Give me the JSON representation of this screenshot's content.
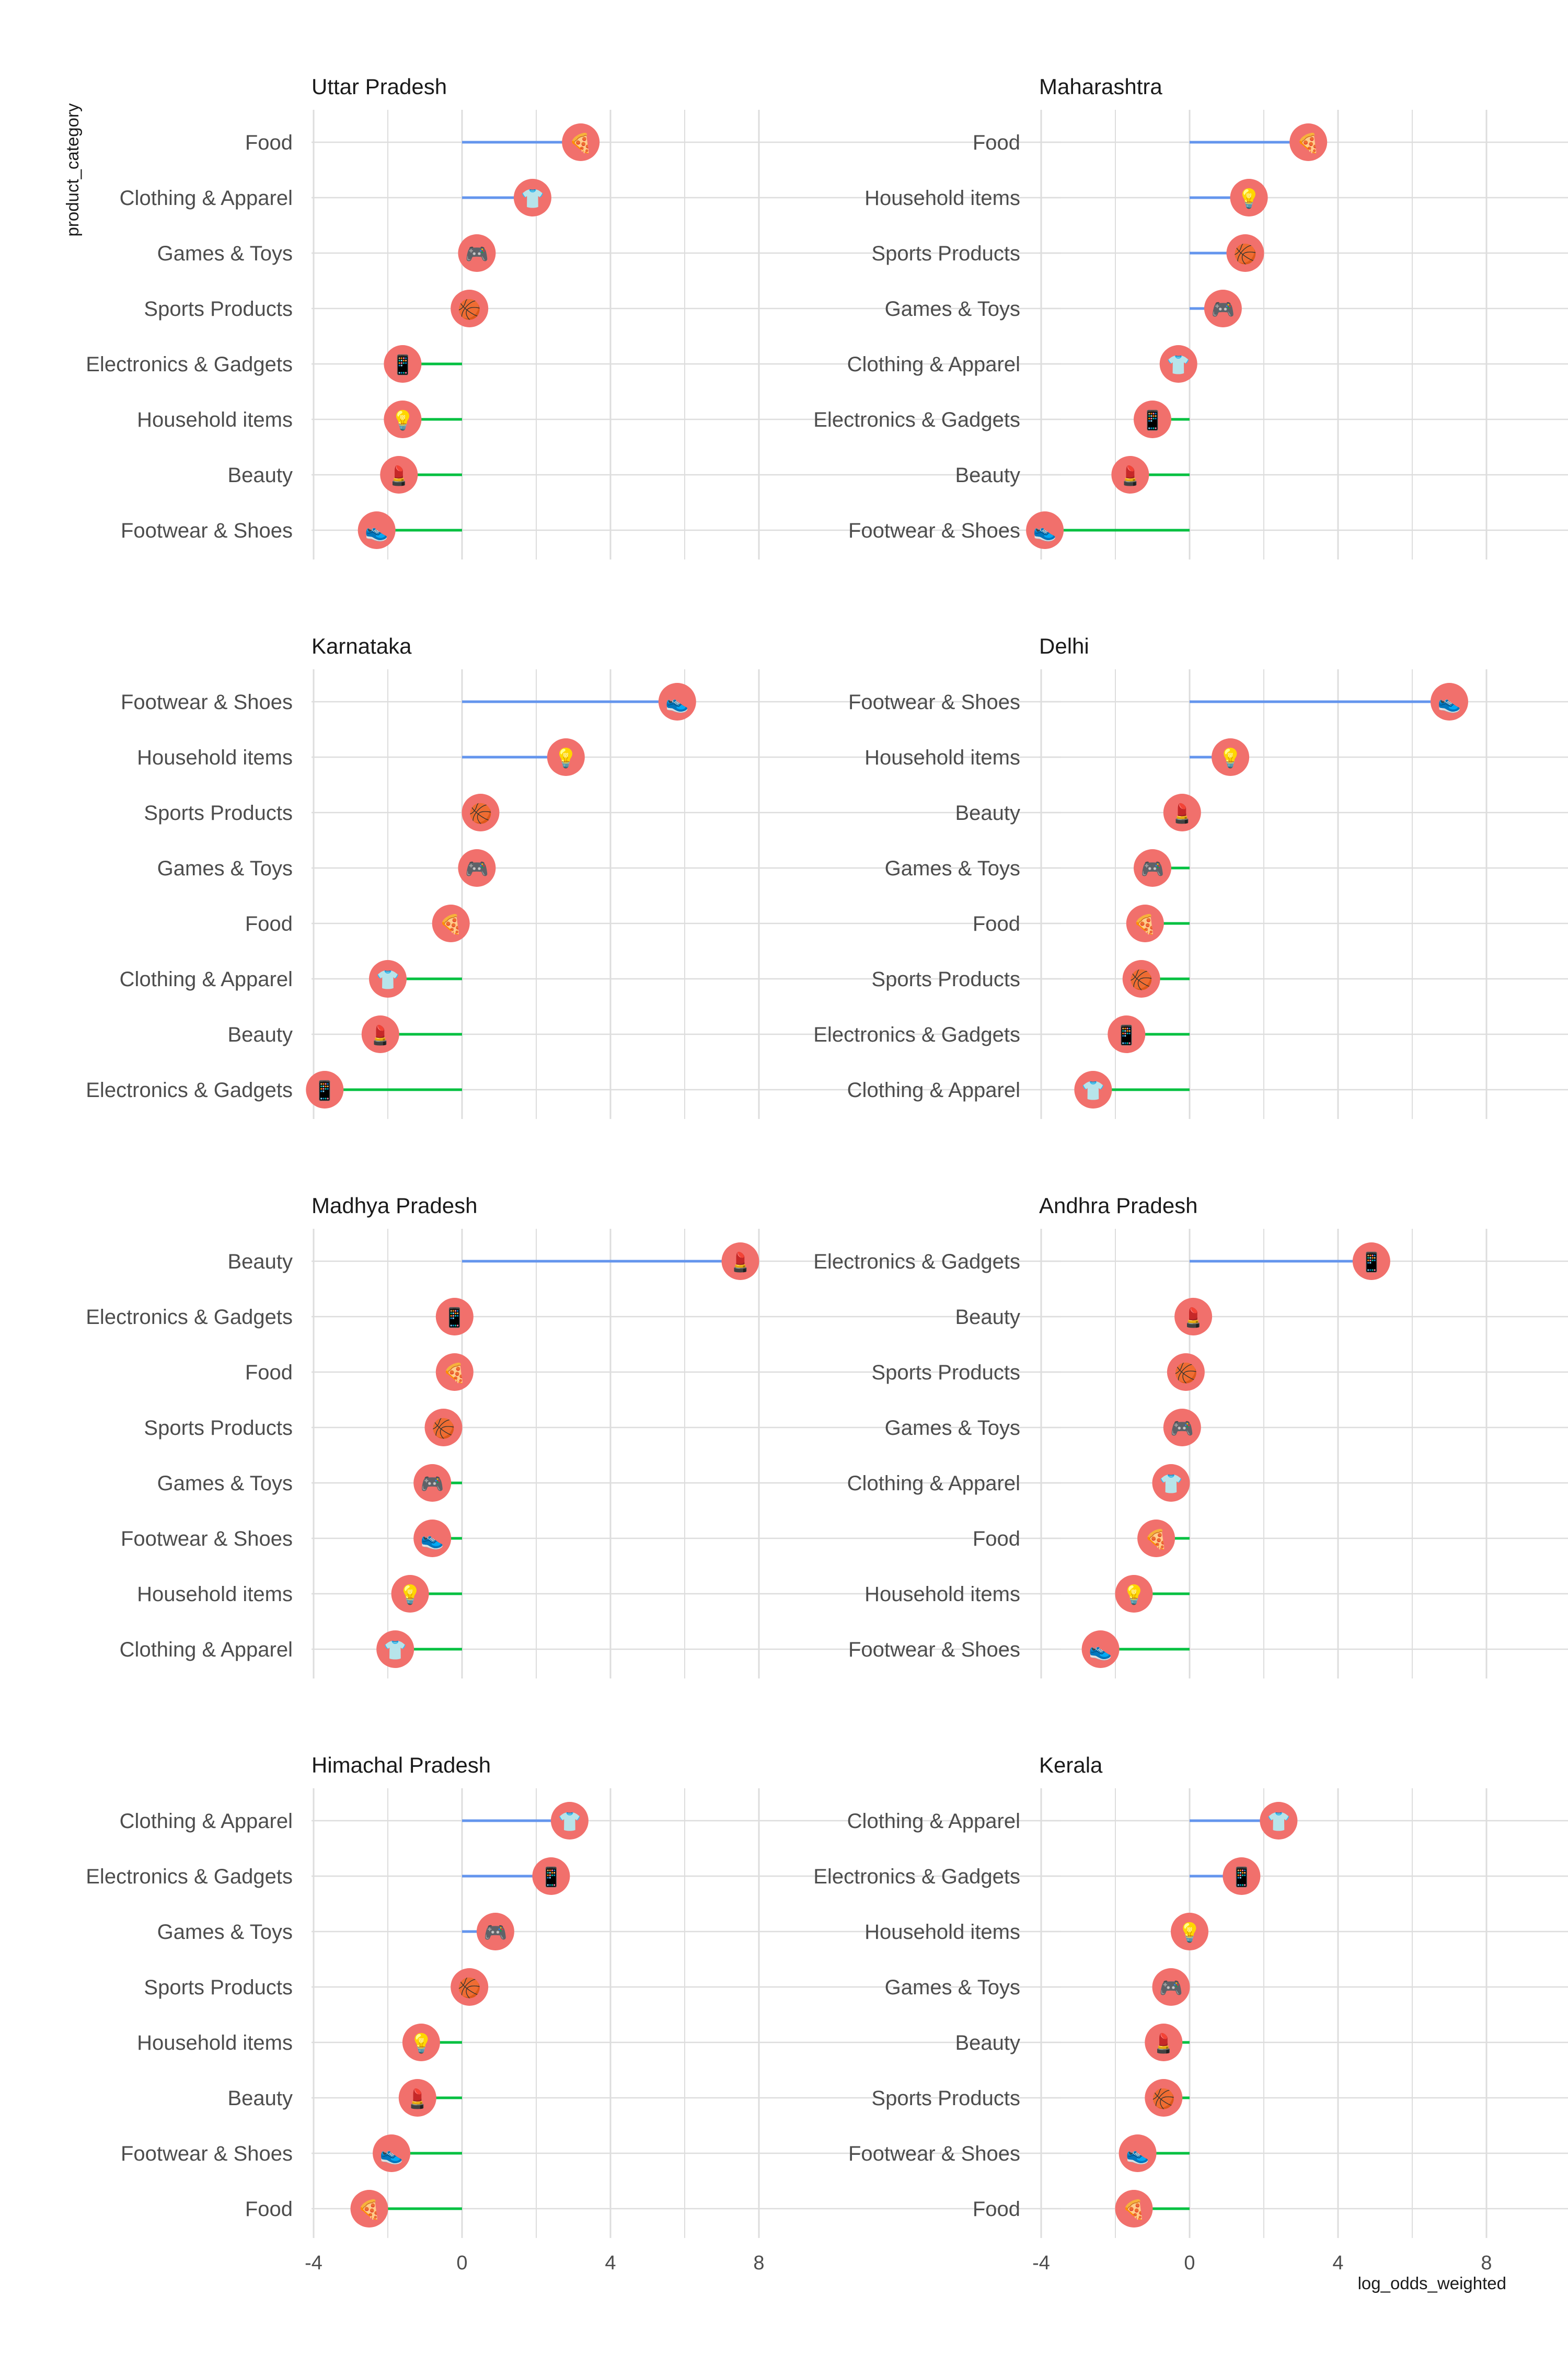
{
  "chart_data": {
    "type": "lollipop",
    "xlabel": "log_odds_weighted",
    "ylabel": "product_category",
    "xlim": [
      -4,
      8
    ],
    "x_ticks": [
      "-4",
      "0",
      "4",
      "8"
    ],
    "grid": true,
    "colors": {
      "positive_segment": "#6495ED",
      "negative_segment": "#00C040",
      "point": "#F1706C",
      "grid": "#dddddd"
    },
    "icons": {
      "Food": "🍕",
      "Clothing & Apparel": "👕",
      "Games & Toys": "🎮",
      "Sports Products": "🏀",
      "Electronics & Gadgets": "📱",
      "Household items": "💡",
      "Beauty": "💄",
      "Footwear & Shoes": "👟"
    },
    "panels": [
      {
        "title": "Uttar Pradesh",
        "categories": [
          "Food",
          "Clothing & Apparel",
          "Games & Toys",
          "Sports Products",
          "Electronics & Gadgets",
          "Household items",
          "Beauty",
          "Footwear & Shoes"
        ],
        "values": [
          3.2,
          1.9,
          0.4,
          0.2,
          -1.6,
          -1.6,
          -1.7,
          -2.3
        ]
      },
      {
        "title": "Maharashtra",
        "categories": [
          "Food",
          "Household items",
          "Sports Products",
          "Games & Toys",
          "Clothing & Apparel",
          "Electronics & Gadgets",
          "Beauty",
          "Footwear & Shoes"
        ],
        "values": [
          3.2,
          1.6,
          1.5,
          0.9,
          -0.3,
          -1.0,
          -1.6,
          -3.9
        ]
      },
      {
        "title": "Karnataka",
        "categories": [
          "Footwear & Shoes",
          "Household items",
          "Sports Products",
          "Games & Toys",
          "Food",
          "Clothing & Apparel",
          "Beauty",
          "Electronics & Gadgets"
        ],
        "values": [
          5.8,
          2.8,
          0.5,
          0.4,
          -0.3,
          -2.0,
          -2.2,
          -3.7
        ]
      },
      {
        "title": "Delhi",
        "categories": [
          "Footwear & Shoes",
          "Household items",
          "Beauty",
          "Games & Toys",
          "Food",
          "Sports Products",
          "Electronics & Gadgets",
          "Clothing & Apparel"
        ],
        "values": [
          7.0,
          1.1,
          -0.2,
          -1.0,
          -1.2,
          -1.3,
          -1.7,
          -2.6
        ]
      },
      {
        "title": "Madhya Pradesh",
        "categories": [
          "Beauty",
          "Electronics & Gadgets",
          "Food",
          "Sports Products",
          "Games & Toys",
          "Footwear & Shoes",
          "Household items",
          "Clothing & Apparel"
        ],
        "values": [
          7.5,
          -0.2,
          -0.2,
          -0.5,
          -0.8,
          -0.8,
          -1.4,
          -1.8
        ]
      },
      {
        "title": "Andhra Pradesh",
        "categories": [
          "Electronics & Gadgets",
          "Beauty",
          "Sports Products",
          "Games & Toys",
          "Clothing & Apparel",
          "Food",
          "Household items",
          "Footwear & Shoes"
        ],
        "values": [
          4.9,
          0.1,
          -0.1,
          -0.2,
          -0.5,
          -0.9,
          -1.5,
          -2.4
        ]
      },
      {
        "title": "Himachal Pradesh",
        "categories": [
          "Clothing & Apparel",
          "Electronics & Gadgets",
          "Games & Toys",
          "Sports Products",
          "Household items",
          "Beauty",
          "Footwear & Shoes",
          "Food"
        ],
        "values": [
          2.9,
          2.4,
          0.9,
          0.2,
          -1.1,
          -1.2,
          -1.9,
          -2.5
        ]
      },
      {
        "title": "Kerala",
        "categories": [
          "Clothing & Apparel",
          "Electronics & Gadgets",
          "Household items",
          "Games & Toys",
          "Beauty",
          "Sports Products",
          "Footwear & Shoes",
          "Food"
        ],
        "values": [
          2.4,
          1.4,
          0.0,
          -0.5,
          -0.7,
          -0.7,
          -1.4,
          -1.5
        ]
      }
    ]
  }
}
